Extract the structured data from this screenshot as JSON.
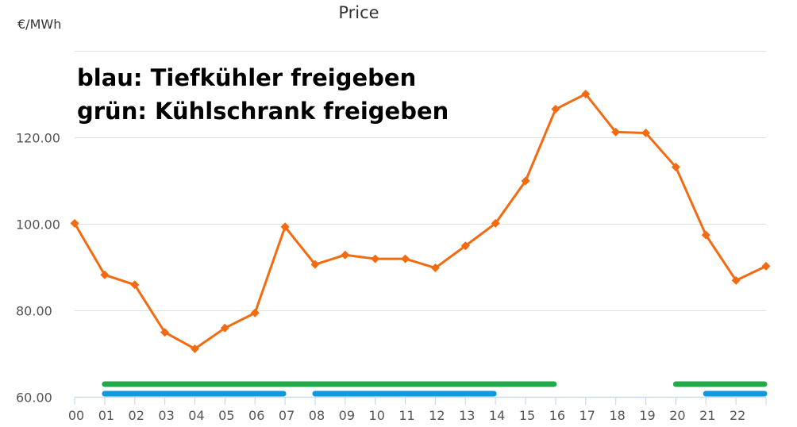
{
  "chart_data": {
    "type": "line",
    "title": "Price",
    "unit_label": "€/MWh",
    "annotations": [
      "blau: Tiefkühler freigeben",
      "grün: Kühlschrank freigeben"
    ],
    "x_tick_labels": [
      "00",
      "01",
      "02",
      "03",
      "04",
      "05",
      "06",
      "07",
      "08",
      "09",
      "10",
      "11",
      "12",
      "13",
      "14",
      "15",
      "16",
      "17",
      "18",
      "19",
      "20",
      "21",
      "22"
    ],
    "x": [
      0,
      1,
      2,
      3,
      4,
      5,
      6,
      7,
      8,
      9,
      10,
      11,
      12,
      13,
      14,
      15,
      16,
      17,
      18,
      19,
      20,
      21,
      22,
      23
    ],
    "series": [
      {
        "color": "#f36b10",
        "values": [
          100.2,
          88.3,
          86.0,
          75.0,
          71.2,
          76.0,
          79.5,
          99.4,
          90.7,
          92.9,
          92.0,
          92.0,
          89.9,
          95.0,
          100.2,
          110.0,
          126.6,
          130.1,
          121.3,
          121.1,
          113.2,
          97.5,
          87.0,
          90.3
        ]
      }
    ],
    "y_ticks": [
      60,
      80,
      100,
      120
    ],
    "y_tick_labels": [
      "60.00",
      "80.00",
      "100.00",
      "120.00"
    ],
    "ylim": [
      60,
      140
    ],
    "xlim": [
      0,
      23
    ],
    "grid": true,
    "ranges": [
      {
        "color": "#22aa4a",
        "from": 1,
        "to": 16
      },
      {
        "color": "#22aa4a",
        "from": 20,
        "to": 23
      },
      {
        "color": "#1199dd",
        "from": 1,
        "to": 7
      },
      {
        "color": "#1199dd",
        "from": 8,
        "to": 14
      },
      {
        "color": "#1199dd",
        "from": 21,
        "to": 23
      }
    ]
  }
}
